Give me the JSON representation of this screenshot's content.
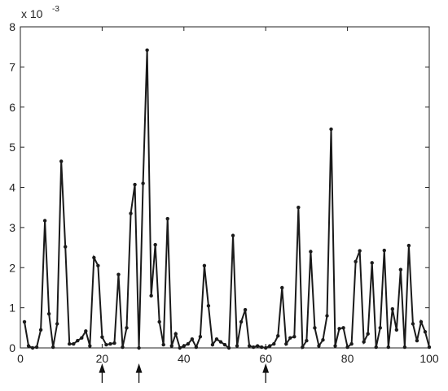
{
  "chart_data": {
    "type": "line",
    "y_scale_label": {
      "base": "x 10",
      "exponent": "-3"
    },
    "x": [
      1,
      2,
      3,
      4,
      5,
      6,
      7,
      8,
      9,
      10,
      11,
      12,
      13,
      14,
      15,
      16,
      17,
      18,
      19,
      20,
      21,
      22,
      23,
      24,
      25,
      26,
      27,
      28,
      29,
      30,
      31,
      32,
      33,
      34,
      35,
      36,
      37,
      38,
      39,
      40,
      41,
      42,
      43,
      44,
      45,
      46,
      47,
      48,
      49,
      50,
      51,
      52,
      53,
      54,
      55,
      56,
      57,
      58,
      59,
      60,
      61,
      62,
      63,
      64,
      65,
      66,
      67,
      68,
      69,
      70,
      71,
      72,
      73,
      74,
      75,
      76,
      77,
      78,
      79,
      80,
      81,
      82,
      83,
      84,
      85,
      86,
      87,
      88,
      89,
      90,
      91,
      92,
      93,
      94,
      95,
      96,
      97,
      98,
      99,
      100
    ],
    "values": [
      0.65,
      0.05,
      0.0,
      0.02,
      0.45,
      3.17,
      0.85,
      0.02,
      0.6,
      4.65,
      2.52,
      0.1,
      0.1,
      0.18,
      0.25,
      0.42,
      0.05,
      2.25,
      2.05,
      0.27,
      0.08,
      0.1,
      0.12,
      1.83,
      0.02,
      0.5,
      3.35,
      4.07,
      0.0,
      4.1,
      7.42,
      1.3,
      2.57,
      0.65,
      0.08,
      3.22,
      0.05,
      0.35,
      0.0,
      0.05,
      0.1,
      0.22,
      0.02,
      0.28,
      2.05,
      1.05,
      0.08,
      0.22,
      0.15,
      0.08,
      0.0,
      2.8,
      0.05,
      0.65,
      0.95,
      0.05,
      0.02,
      0.05,
      0.02,
      0.0,
      0.05,
      0.1,
      0.3,
      1.5,
      0.1,
      0.25,
      0.28,
      3.5,
      0.02,
      0.18,
      2.4,
      0.5,
      0.05,
      0.2,
      0.8,
      5.45,
      0.05,
      0.48,
      0.5,
      0.02,
      0.1,
      2.15,
      2.42,
      0.15,
      0.35,
      2.12,
      0.02,
      0.5,
      2.43,
      0.02,
      0.97,
      0.45,
      1.95,
      0.02,
      2.55,
      0.6,
      0.18,
      0.65,
      0.4,
      0.02
    ],
    "color": "#1a1a1a",
    "xlim": [
      0,
      100
    ],
    "xticks": [
      0,
      20,
      40,
      60,
      80,
      100
    ],
    "ylim": [
      0,
      8
    ],
    "yticks": [
      0,
      1,
      2,
      3,
      4,
      5,
      6,
      7,
      8
    ],
    "arrow_x": [
      20,
      29,
      60
    ]
  }
}
